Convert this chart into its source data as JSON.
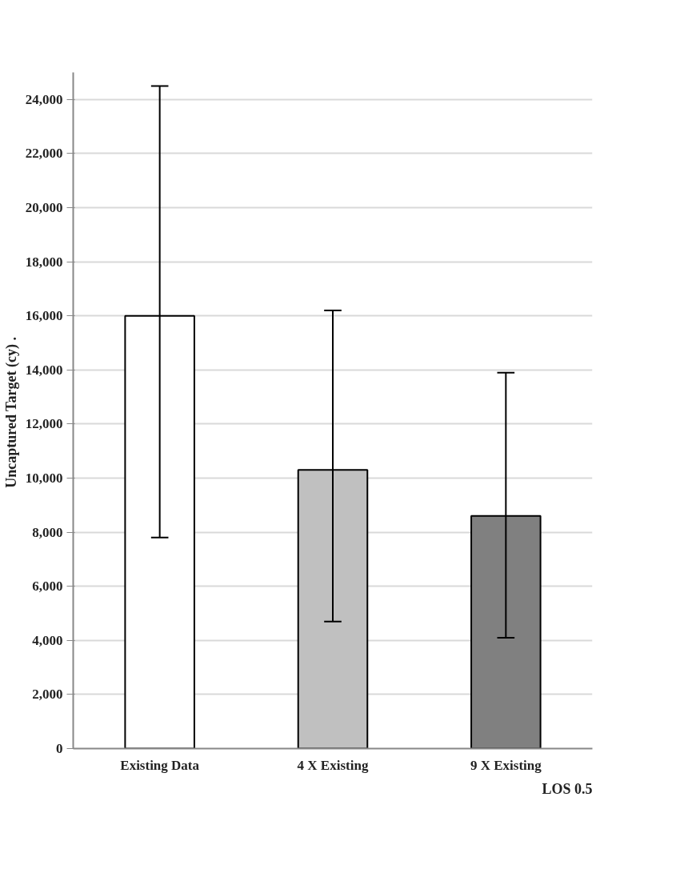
{
  "chart_data": {
    "type": "bar",
    "ylabel": "Uncaptured Target (cy)  .",
    "categories": [
      "Existing Data",
      "4 X Existing",
      "9 X Existing"
    ],
    "values": [
      16000,
      10300,
      8600
    ],
    "colors": [
      "#ffffff",
      "#c0c0c0",
      "#808080"
    ],
    "errors": [
      [
        7800,
        24500
      ],
      [
        4700,
        16200
      ],
      [
        4100,
        13900
      ]
    ],
    "ylim": [
      0,
      25000
    ],
    "yticks": [
      0,
      {
        "value": 2000,
        "label": "2,000"
      },
      {
        "value": 4000,
        "label": "4,000"
      },
      {
        "value": 6000,
        "label": "6,000"
      },
      {
        "value": 8000,
        "label": "8,000"
      },
      {
        "value": 10000,
        "label": "10,000"
      },
      {
        "value": 12000,
        "label": "12,000"
      },
      {
        "value": 14000,
        "label": "14,000"
      },
      {
        "value": 16000,
        "label": "16,000"
      },
      {
        "value": 18000,
        "label": "18,000"
      },
      {
        "value": 20000,
        "label": "20,000"
      },
      {
        "value": 22000,
        "label": "22,000"
      },
      {
        "value": 24000,
        "label": "24,000"
      }
    ],
    "grid": "y",
    "annotations": [
      "LOS 0.5"
    ]
  }
}
